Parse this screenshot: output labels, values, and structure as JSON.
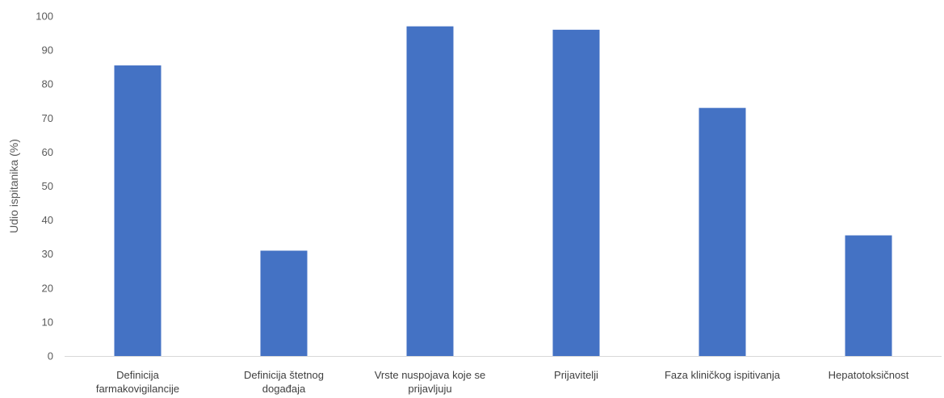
{
  "chart_data": {
    "type": "bar",
    "categories": [
      [
        "Definicija",
        "farmakovigilancije"
      ],
      [
        "Definicija štetnog",
        "događaja"
      ],
      [
        "Vrste nuspojava koje se",
        "prijavljuju"
      ],
      [
        "Prijavitelji"
      ],
      [
        "Faza kliničkog ispitivanja"
      ],
      [
        "Hepatotoksičnost"
      ]
    ],
    "values": [
      85.5,
      31,
      97,
      96,
      73,
      35.5
    ],
    "ylabel": "Udio ispitanika (%)",
    "ylim": [
      0,
      100
    ],
    "yticks": [
      0,
      10,
      20,
      30,
      40,
      50,
      60,
      70,
      80,
      90,
      100
    ],
    "grid": false,
    "bar_color": "#4472C4",
    "axis_color": "#D9D9D9"
  }
}
